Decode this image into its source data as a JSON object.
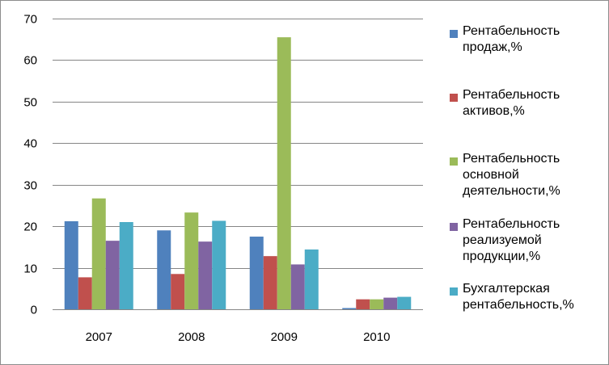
{
  "chart_data": {
    "type": "bar",
    "categories": [
      "2007",
      "2008",
      "2009",
      "2010"
    ],
    "series": [
      {
        "name": "Рентабельность продаж,%",
        "color": "#4f81bd",
        "values": [
          21.2,
          19.0,
          17.5,
          0.3
        ]
      },
      {
        "name": "Рентабельность активов,%",
        "color": "#c0504d",
        "values": [
          7.7,
          8.5,
          12.8,
          2.4
        ]
      },
      {
        "name": "Рентабельность основной деятельности,%",
        "color": "#9bbb59",
        "values": [
          26.7,
          23.3,
          65.5,
          2.4
        ]
      },
      {
        "name": "Рентабельность реализуемой продукции,%",
        "color": "#8064a2",
        "values": [
          16.5,
          16.3,
          10.8,
          2.8
        ]
      },
      {
        "name": "Бухгалтерская рентабельность,%",
        "color": "#4bacc6",
        "values": [
          21.0,
          21.3,
          14.4,
          3.0
        ]
      }
    ],
    "y_ticks": [
      "0",
      "10",
      "20",
      "30",
      "40",
      "50",
      "60",
      "70"
    ],
    "ylim": [
      0,
      70
    ],
    "grid": true,
    "legend_position": "right",
    "title": "",
    "xlabel": "",
    "ylabel": ""
  }
}
